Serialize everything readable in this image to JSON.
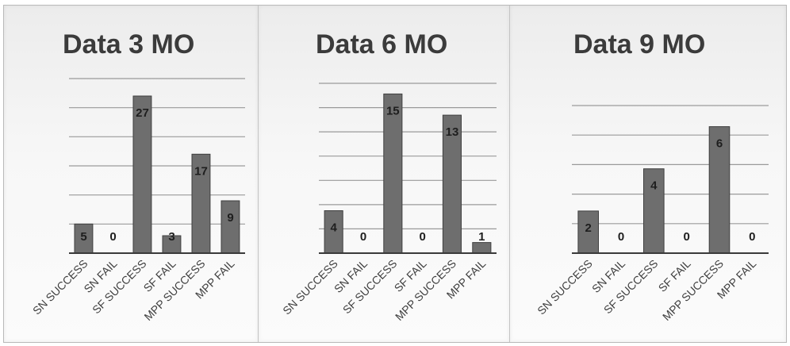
{
  "chart_data": [
    {
      "type": "bar",
      "title": "Data 3 MO",
      "categories": [
        "SN SUCCESS",
        "SN FAIL",
        "SF SUCCESS",
        "SF FAIL",
        "MPP SUCCESS",
        "MPP FAIL"
      ],
      "values": [
        5,
        0,
        27,
        3,
        17,
        9
      ],
      "ylim": [
        0,
        30
      ],
      "grid": true,
      "legend": "none",
      "colors": {
        "bar": "#6e6e6e"
      }
    },
    {
      "type": "bar",
      "title": "Data 6 MO",
      "categories": [
        "SN SUCCESS",
        "SN FAIL",
        "SF SUCCESS",
        "SF FAIL",
        "MPP SUCCESS",
        "MPP FAIL"
      ],
      "values": [
        4,
        0,
        15,
        0,
        13,
        1
      ],
      "ylim": [
        0,
        16
      ],
      "grid": true,
      "legend": "none",
      "colors": {
        "bar": "#6e6e6e"
      }
    },
    {
      "type": "bar",
      "title": "Data 9 MO",
      "categories": [
        "SN SUCCESS",
        "SN FAIL",
        "SF SUCCESS",
        "SF FAIL",
        "MPP SUCCESS",
        "MPP FAIL"
      ],
      "values": [
        2,
        0,
        4,
        0,
        6,
        0
      ],
      "ylim": [
        0,
        7
      ],
      "grid": true,
      "legend": "none",
      "colors": {
        "bar": "#6e6e6e"
      }
    }
  ]
}
